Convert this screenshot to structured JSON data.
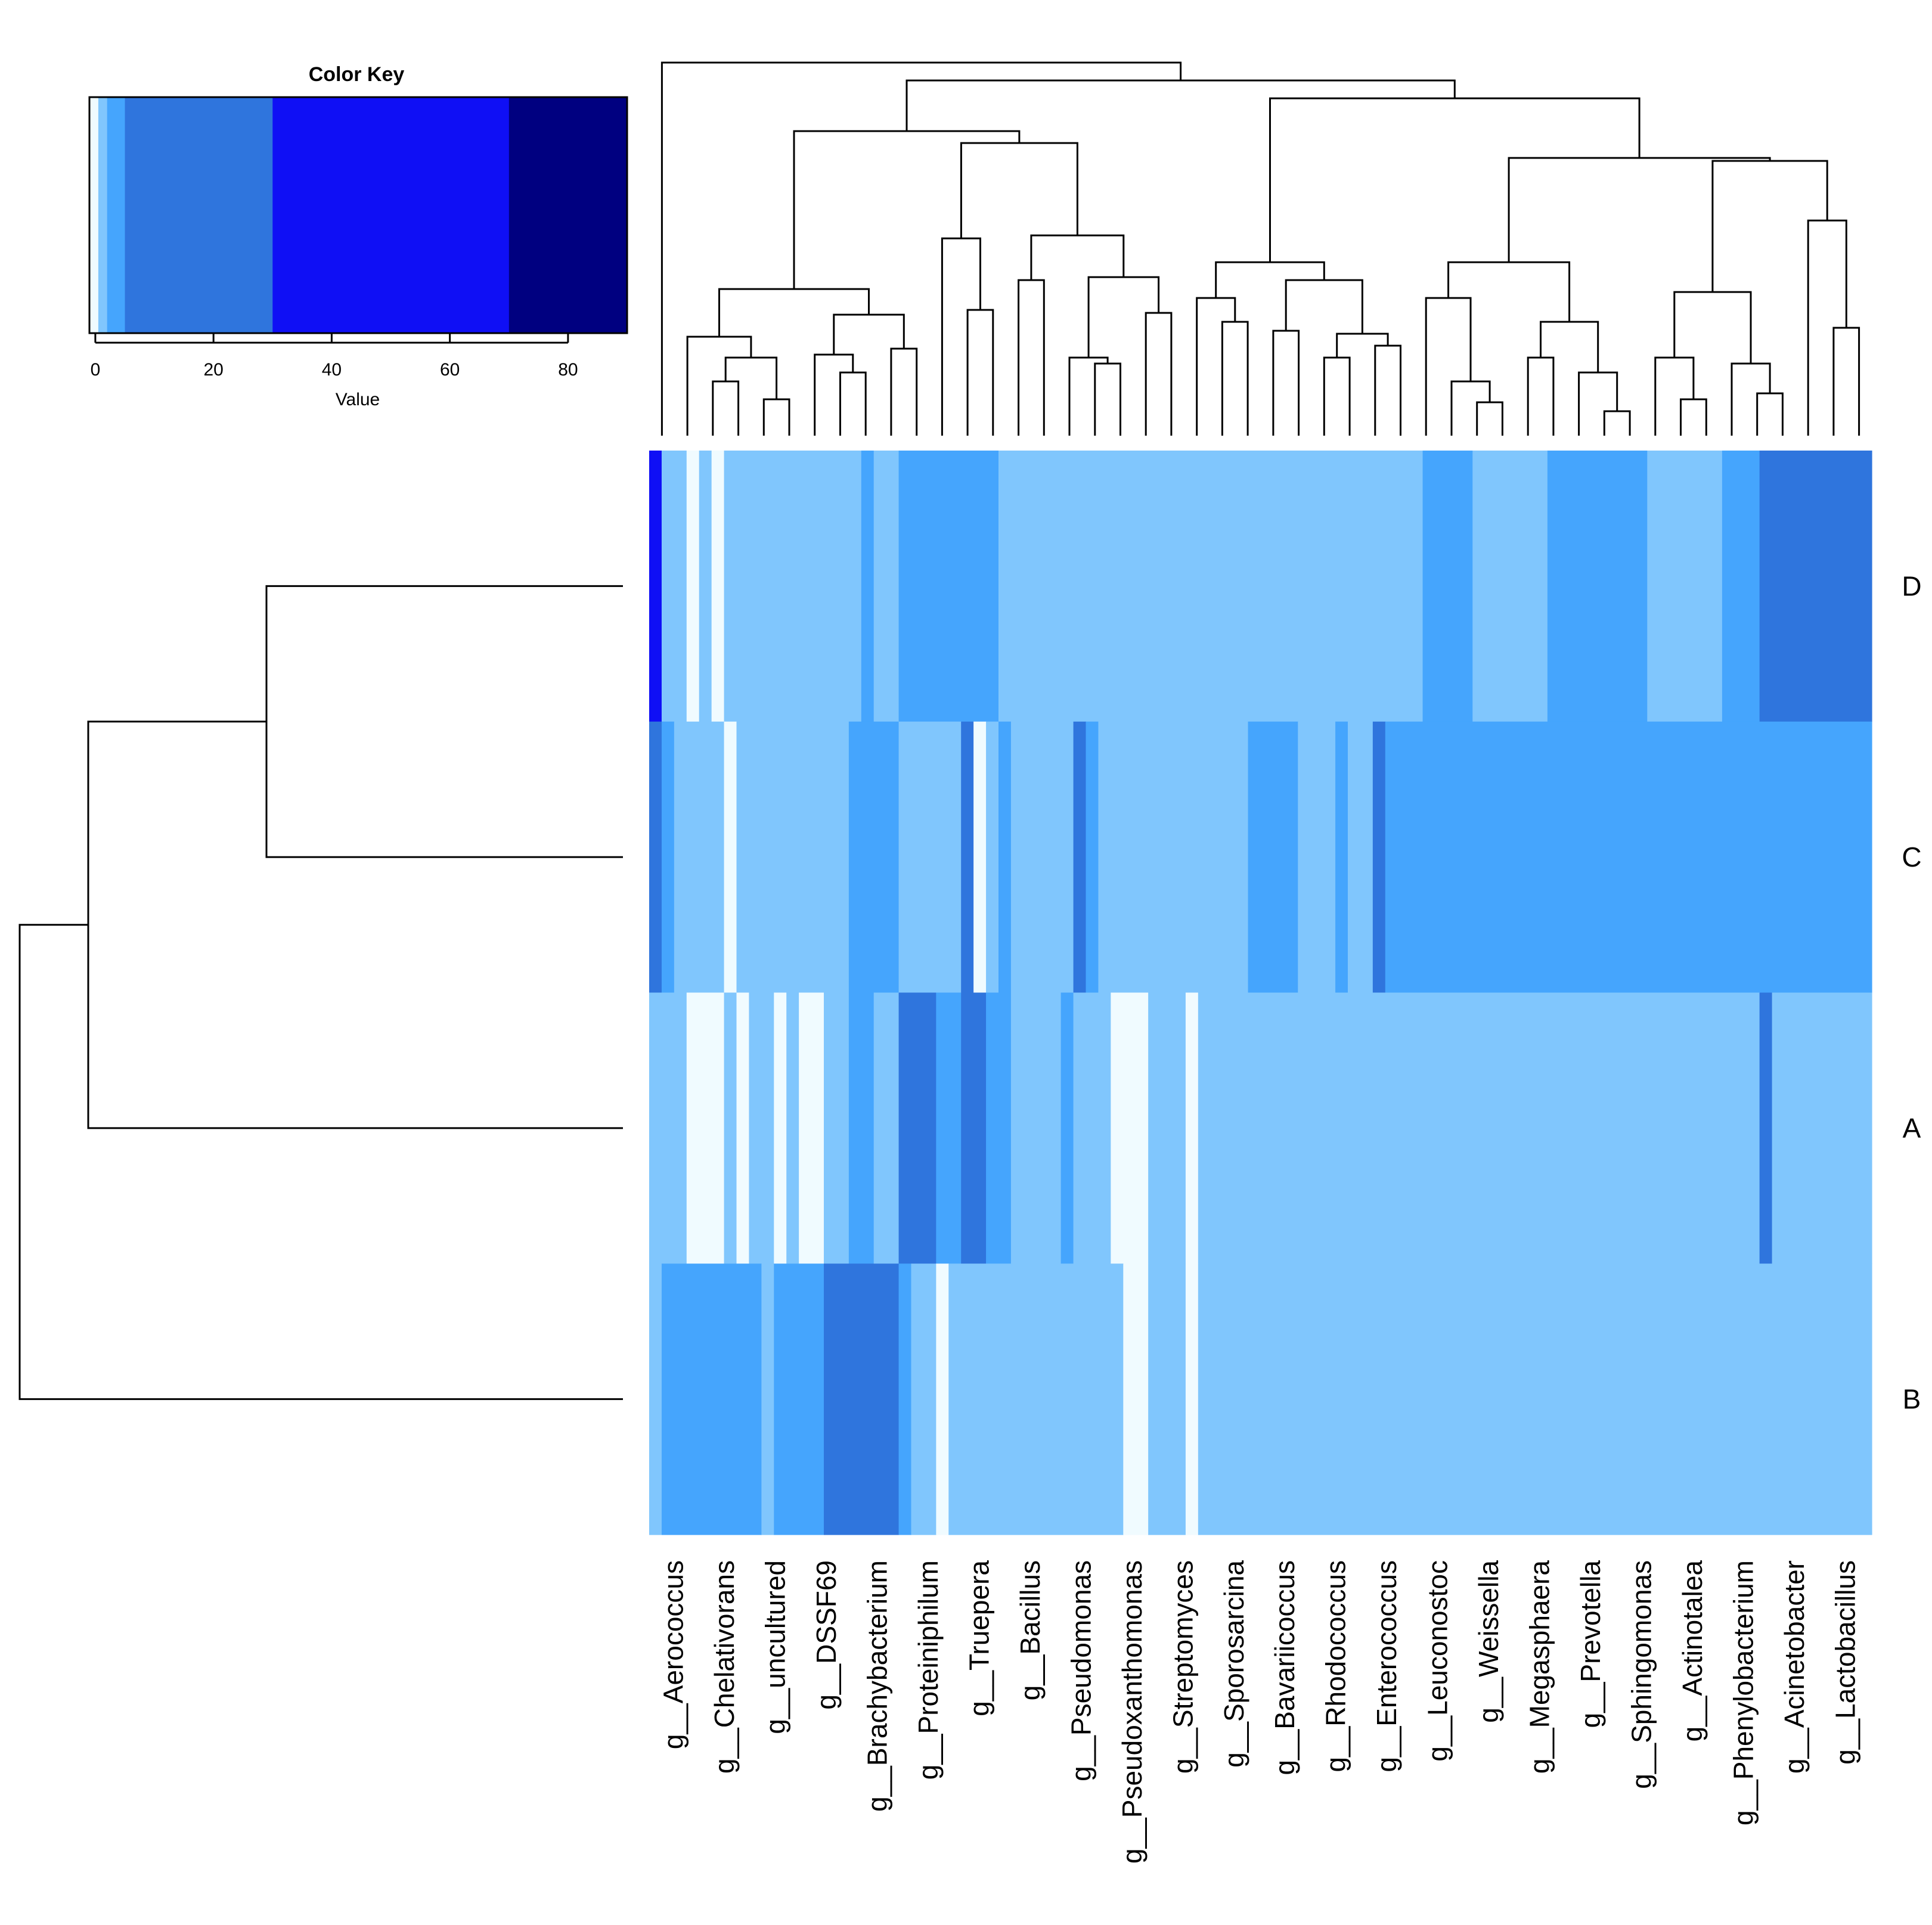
{
  "chart_data": {
    "type": "heatmap",
    "title": "",
    "xlabel": "",
    "ylabel": "",
    "rows": [
      "D",
      "C",
      "A",
      "B"
    ],
    "columns": [
      "g__Aerococcus",
      "g__Chelativorans",
      "g__uncultured",
      "g__DSSF69",
      "g__Brachybacterium",
      "g__Proteiniphilum",
      "g__Truepera",
      "g__Bacillus",
      "g__Pseudomonas",
      "g__Pseudoxanthomonas",
      "g__Streptomyces",
      "g__Sporosarcina",
      "g__Bavariicoccus",
      "g__Rhodococcus",
      "g__Enterococcus",
      "g__Leuconostoc",
      "g__Weissella",
      "g__Megasphaera",
      "g__Prevotella",
      "g__Sphingomonas",
      "g__Actinotalea",
      "g__Phenylobacterium",
      "g__Acinetobacter",
      "g__Lactobacillus"
    ],
    "levels": [
      [
        6,
        2,
        2,
        1,
        2,
        1,
        2,
        2,
        2,
        2,
        2,
        2,
        2,
        2,
        2,
        2,
        2,
        3,
        2,
        2,
        3,
        3,
        3,
        3,
        3,
        3,
        3,
        3,
        2,
        2,
        2,
        2,
        2,
        2,
        2,
        2,
        2,
        2,
        2,
        2,
        2,
        2,
        2,
        2,
        2,
        2,
        2,
        2,
        2,
        2,
        2,
        2,
        2,
        2,
        2,
        2,
        2,
        2,
        2,
        2,
        2,
        2,
        3,
        3,
        3,
        3,
        2,
        2,
        2,
        2,
        2,
        2,
        3,
        3,
        3,
        3,
        3,
        3,
        3,
        3,
        2,
        2,
        2,
        2,
        2,
        2,
        3,
        3,
        3,
        4,
        4,
        4,
        4,
        4,
        4,
        4,
        4,
        4
      ],
      [
        4,
        3,
        2,
        2,
        2,
        2,
        1,
        2,
        2,
        2,
        2,
        2,
        2,
        2,
        2,
        2,
        3,
        3,
        3,
        3,
        2,
        2,
        2,
        2,
        2,
        4,
        1,
        2,
        3,
        2,
        2,
        2,
        2,
        2,
        4,
        3,
        2,
        2,
        2,
        2,
        2,
        2,
        2,
        2,
        2,
        2,
        2,
        2,
        3,
        3,
        3,
        3,
        2,
        2,
        2,
        3,
        2,
        2,
        4,
        3,
        3,
        3,
        3,
        3,
        3,
        3,
        3,
        3,
        3,
        3,
        3,
        3,
        3,
        3,
        3,
        3,
        3,
        3,
        3,
        3,
        3,
        3,
        3,
        3,
        3,
        3,
        3,
        3,
        3,
        3,
        3,
        3,
        3,
        3,
        3,
        3,
        3,
        3
      ],
      [
        2,
        2,
        2,
        1,
        1,
        1,
        2,
        1,
        2,
        2,
        1,
        2,
        1,
        1,
        2,
        2,
        3,
        3,
        2,
        2,
        4,
        4,
        4,
        3,
        3,
        4,
        4,
        3,
        3,
        2,
        2,
        2,
        2,
        3,
        2,
        2,
        2,
        1,
        1,
        1,
        2,
        2,
        2,
        1,
        2,
        2,
        2,
        2,
        2,
        2,
        2,
        2,
        2,
        2,
        2,
        2,
        2,
        2,
        2,
        2,
        2,
        2,
        2,
        2,
        2,
        2,
        2,
        2,
        2,
        2,
        2,
        2,
        2,
        2,
        2,
        2,
        2,
        2,
        2,
        2,
        2,
        2,
        2,
        2,
        2,
        2,
        2,
        2,
        2,
        4,
        2,
        2,
        2,
        2,
        2,
        2,
        2,
        2
      ],
      [
        2,
        3,
        3,
        3,
        3,
        3,
        3,
        3,
        3,
        2,
        3,
        3,
        3,
        3,
        4,
        4,
        4,
        4,
        4,
        4,
        3,
        2,
        2,
        1,
        2,
        2,
        2,
        2,
        2,
        2,
        2,
        2,
        2,
        2,
        2,
        2,
        2,
        2,
        1,
        1,
        2,
        2,
        2,
        1,
        2,
        2,
        2,
        2,
        2,
        2,
        2,
        2,
        2,
        2,
        2,
        2,
        2,
        2,
        2,
        2,
        2,
        2,
        2,
        2,
        2,
        2,
        2,
        2,
        2,
        2,
        2,
        2,
        2,
        2,
        2,
        2,
        2,
        2,
        2,
        2,
        2,
        2,
        2,
        2,
        2,
        2,
        2,
        2,
        2,
        2,
        2,
        2,
        2,
        2,
        2,
        2,
        2,
        2
      ]
    ],
    "palette": [
      "#f0fbff",
      "#f0fbff",
      "#80c6fd",
      "#45a5fd",
      "#2f75dd",
      "#0f0ff5",
      "#0f0ff5",
      "#000080"
    ],
    "color_key": {
      "title": "Color Key",
      "xlabel": "Value",
      "ticks": [
        0,
        20,
        40,
        60,
        80
      ],
      "range": [
        -1,
        90
      ],
      "breaks": [
        -1,
        0.5,
        2,
        5,
        30,
        70,
        90
      ],
      "colors": [
        "#f0fbff",
        "#80c6fd",
        "#45a5fd",
        "#2f75dd",
        "#0f0ff5",
        "#000080"
      ]
    },
    "dendrogram_top": [
      [
        0.5,
        0,
        93.5,
        0,
        0
      ],
      [
        93.5,
        0,
        188,
        0,
        0
      ]
    ],
    "dendrogram_left": []
  }
}
